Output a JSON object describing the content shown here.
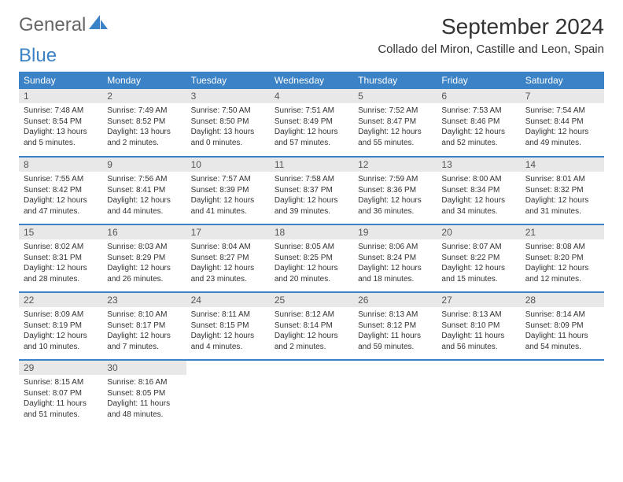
{
  "brand": {
    "word1": "General",
    "word2": "Blue"
  },
  "header": {
    "title": "September 2024",
    "location": "Collado del Miron, Castille and Leon, Spain"
  },
  "style": {
    "header_bg": "#3b82c7",
    "header_fg": "#ffffff",
    "daynum_bg": "#e8e8e8",
    "row_divider": "#3b82c7",
    "page_bg": "#ffffff",
    "text_color": "#333333",
    "title_fontsize": 28,
    "th_fontsize": 12,
    "body_fontsize": 10
  },
  "weekdays": [
    "Sunday",
    "Monday",
    "Tuesday",
    "Wednesday",
    "Thursday",
    "Friday",
    "Saturday"
  ],
  "days": [
    {
      "n": 1,
      "sunrise": "7:48 AM",
      "sunset": "8:54 PM",
      "daylight": "13 hours and 5 minutes."
    },
    {
      "n": 2,
      "sunrise": "7:49 AM",
      "sunset": "8:52 PM",
      "daylight": "13 hours and 2 minutes."
    },
    {
      "n": 3,
      "sunrise": "7:50 AM",
      "sunset": "8:50 PM",
      "daylight": "13 hours and 0 minutes."
    },
    {
      "n": 4,
      "sunrise": "7:51 AM",
      "sunset": "8:49 PM",
      "daylight": "12 hours and 57 minutes."
    },
    {
      "n": 5,
      "sunrise": "7:52 AM",
      "sunset": "8:47 PM",
      "daylight": "12 hours and 55 minutes."
    },
    {
      "n": 6,
      "sunrise": "7:53 AM",
      "sunset": "8:46 PM",
      "daylight": "12 hours and 52 minutes."
    },
    {
      "n": 7,
      "sunrise": "7:54 AM",
      "sunset": "8:44 PM",
      "daylight": "12 hours and 49 minutes."
    },
    {
      "n": 8,
      "sunrise": "7:55 AM",
      "sunset": "8:42 PM",
      "daylight": "12 hours and 47 minutes."
    },
    {
      "n": 9,
      "sunrise": "7:56 AM",
      "sunset": "8:41 PM",
      "daylight": "12 hours and 44 minutes."
    },
    {
      "n": 10,
      "sunrise": "7:57 AM",
      "sunset": "8:39 PM",
      "daylight": "12 hours and 41 minutes."
    },
    {
      "n": 11,
      "sunrise": "7:58 AM",
      "sunset": "8:37 PM",
      "daylight": "12 hours and 39 minutes."
    },
    {
      "n": 12,
      "sunrise": "7:59 AM",
      "sunset": "8:36 PM",
      "daylight": "12 hours and 36 minutes."
    },
    {
      "n": 13,
      "sunrise": "8:00 AM",
      "sunset": "8:34 PM",
      "daylight": "12 hours and 34 minutes."
    },
    {
      "n": 14,
      "sunrise": "8:01 AM",
      "sunset": "8:32 PM",
      "daylight": "12 hours and 31 minutes."
    },
    {
      "n": 15,
      "sunrise": "8:02 AM",
      "sunset": "8:31 PM",
      "daylight": "12 hours and 28 minutes."
    },
    {
      "n": 16,
      "sunrise": "8:03 AM",
      "sunset": "8:29 PM",
      "daylight": "12 hours and 26 minutes."
    },
    {
      "n": 17,
      "sunrise": "8:04 AM",
      "sunset": "8:27 PM",
      "daylight": "12 hours and 23 minutes."
    },
    {
      "n": 18,
      "sunrise": "8:05 AM",
      "sunset": "8:25 PM",
      "daylight": "12 hours and 20 minutes."
    },
    {
      "n": 19,
      "sunrise": "8:06 AM",
      "sunset": "8:24 PM",
      "daylight": "12 hours and 18 minutes."
    },
    {
      "n": 20,
      "sunrise": "8:07 AM",
      "sunset": "8:22 PM",
      "daylight": "12 hours and 15 minutes."
    },
    {
      "n": 21,
      "sunrise": "8:08 AM",
      "sunset": "8:20 PM",
      "daylight": "12 hours and 12 minutes."
    },
    {
      "n": 22,
      "sunrise": "8:09 AM",
      "sunset": "8:19 PM",
      "daylight": "12 hours and 10 minutes."
    },
    {
      "n": 23,
      "sunrise": "8:10 AM",
      "sunset": "8:17 PM",
      "daylight": "12 hours and 7 minutes."
    },
    {
      "n": 24,
      "sunrise": "8:11 AM",
      "sunset": "8:15 PM",
      "daylight": "12 hours and 4 minutes."
    },
    {
      "n": 25,
      "sunrise": "8:12 AM",
      "sunset": "8:14 PM",
      "daylight": "12 hours and 2 minutes."
    },
    {
      "n": 26,
      "sunrise": "8:13 AM",
      "sunset": "8:12 PM",
      "daylight": "11 hours and 59 minutes."
    },
    {
      "n": 27,
      "sunrise": "8:13 AM",
      "sunset": "8:10 PM",
      "daylight": "11 hours and 56 minutes."
    },
    {
      "n": 28,
      "sunrise": "8:14 AM",
      "sunset": "8:09 PM",
      "daylight": "11 hours and 54 minutes."
    },
    {
      "n": 29,
      "sunrise": "8:15 AM",
      "sunset": "8:07 PM",
      "daylight": "11 hours and 51 minutes."
    },
    {
      "n": 30,
      "sunrise": "8:16 AM",
      "sunset": "8:05 PM",
      "daylight": "11 hours and 48 minutes."
    }
  ],
  "labels": {
    "sunrise": "Sunrise:",
    "sunset": "Sunset:",
    "daylight": "Daylight:"
  }
}
